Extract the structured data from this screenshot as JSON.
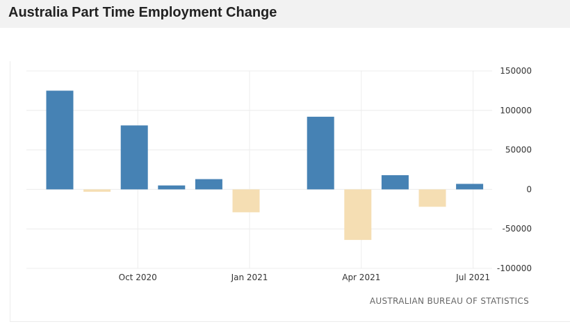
{
  "header": {
    "title": "Australia Part Time Employment Change"
  },
  "source": "AUSTRALIAN BUREAU OF STATISTICS",
  "colors": {
    "positive": "#4682b4",
    "negative": "#f5deb3",
    "grid": "#ececec",
    "header_bg": "#f2f2f2"
  },
  "chart_data": {
    "type": "bar",
    "title": "Australia Part Time Employment Change",
    "xlabel": "",
    "ylabel": "",
    "ylim": [
      -100000,
      150000
    ],
    "y_ticks": [
      150000,
      100000,
      50000,
      0,
      -50000,
      -100000
    ],
    "y_tick_labels": [
      "150000",
      "100000",
      "50000",
      "0",
      "-50000",
      "-100000"
    ],
    "x_tick_labels": [
      "Oct 2020",
      "Jan 2021",
      "Apr 2021",
      "Jul 2021"
    ],
    "x_tick_months": [
      "2020-10",
      "2021-01",
      "2021-04",
      "2021-07"
    ],
    "categories": [
      "2020-08",
      "2020-09",
      "2020-10",
      "2020-11",
      "2020-12",
      "2021-01",
      "2021-02",
      "2021-03",
      "2021-04",
      "2021-05",
      "2021-06",
      "2021-07"
    ],
    "values": [
      125000,
      -3000,
      81000,
      5000,
      13000,
      -29000,
      0,
      92000,
      -64000,
      18000,
      -22000,
      7000
    ],
    "grid": true,
    "y_axis_side": "right"
  }
}
